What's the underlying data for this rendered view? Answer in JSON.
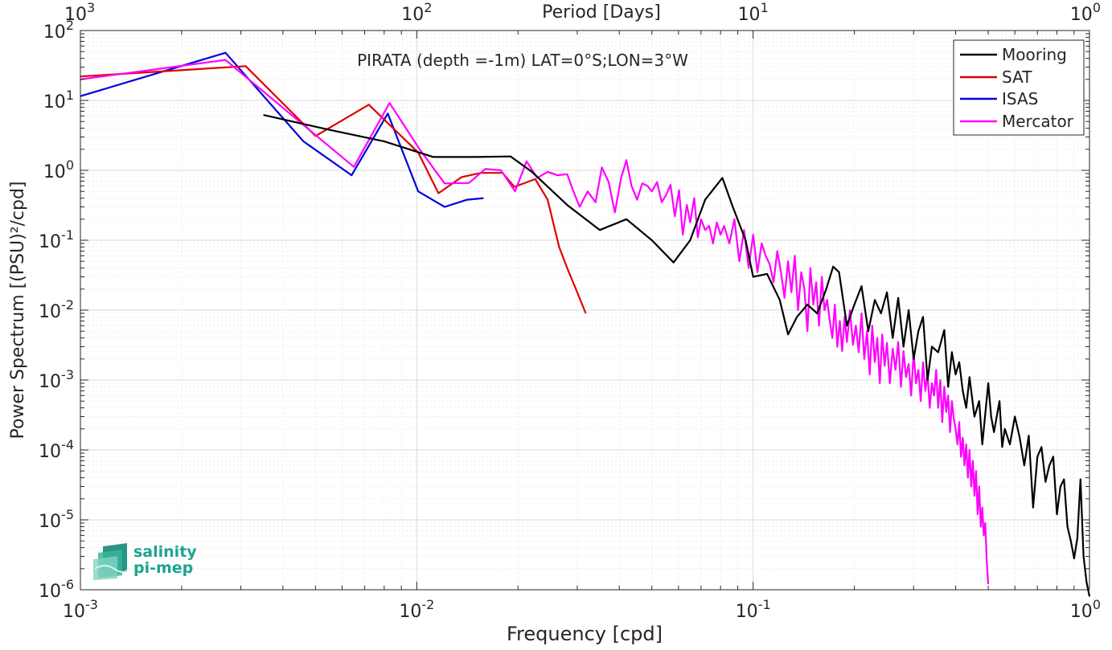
{
  "chart_data": {
    "type": "line",
    "title": "PIRATA (depth =-1m) LAT=0°S;LON=3°W",
    "xlabel": "Frequency [cpd]",
    "ylabel": "Power Spectrum [(PSU)²/cpd]",
    "top_xlabel": "Period [Days]",
    "x_scale": "log",
    "y_scale": "log",
    "xlim": [
      0.001,
      1
    ],
    "ylim": [
      1e-06,
      100
    ],
    "grid": true,
    "minor_grid": true,
    "legend_position": "top-right",
    "x_ticks": [
      {
        "mant": "10",
        "exp": "-3",
        "value": 0.001
      },
      {
        "mant": "10",
        "exp": "-2",
        "value": 0.01
      },
      {
        "mant": "10",
        "exp": "-1",
        "value": 0.1
      },
      {
        "mant": "10",
        "exp": "0",
        "value": 1
      }
    ],
    "top_ticks": [
      {
        "mant": "10",
        "exp": "3",
        "value": 0.001
      },
      {
        "mant": "10",
        "exp": "2",
        "value": 0.01
      },
      {
        "mant": "10",
        "exp": "1",
        "value": 0.1
      },
      {
        "mant": "10",
        "exp": "0",
        "value": 1
      }
    ],
    "y_ticks": [
      {
        "mant": "10",
        "exp": "2",
        "value": 100
      },
      {
        "mant": "10",
        "exp": "1",
        "value": 10
      },
      {
        "mant": "10",
        "exp": "0",
        "value": 1
      },
      {
        "mant": "10",
        "exp": "-1",
        "value": 0.1
      },
      {
        "mant": "10",
        "exp": "-2",
        "value": 0.01
      },
      {
        "mant": "10",
        "exp": "-3",
        "value": 0.001
      },
      {
        "mant": "10",
        "exp": "-4",
        "value": 0.0001
      },
      {
        "mant": "10",
        "exp": "-5",
        "value": 1e-05
      },
      {
        "mant": "10",
        "exp": "-6",
        "value": 1e-06
      }
    ],
    "series": [
      {
        "name": "Mooring",
        "color": "#000000",
        "points": [
          [
            0.0035,
            6.2
          ],
          [
            0.0055,
            3.8
          ],
          [
            0.008,
            2.6
          ],
          [
            0.0112,
            1.55
          ],
          [
            0.015,
            1.55
          ],
          [
            0.019,
            1.58
          ],
          [
            0.022,
            0.95
          ],
          [
            0.028,
            0.32
          ],
          [
            0.035,
            0.14
          ],
          [
            0.042,
            0.2
          ],
          [
            0.05,
            0.1
          ],
          [
            0.058,
            0.048
          ],
          [
            0.065,
            0.1
          ],
          [
            0.072,
            0.38
          ],
          [
            0.081,
            0.78
          ],
          [
            0.087,
            0.3
          ],
          [
            0.095,
            0.1
          ],
          [
            0.1,
            0.03
          ],
          [
            0.11,
            0.033
          ],
          [
            0.12,
            0.014
          ],
          [
            0.127,
            0.0045
          ],
          [
            0.135,
            0.008
          ],
          [
            0.145,
            0.012
          ],
          [
            0.155,
            0.009
          ],
          [
            0.165,
            0.02
          ],
          [
            0.173,
            0.042
          ],
          [
            0.18,
            0.035
          ],
          [
            0.19,
            0.006
          ],
          [
            0.2,
            0.012
          ],
          [
            0.21,
            0.022
          ],
          [
            0.22,
            0.005
          ],
          [
            0.23,
            0.014
          ],
          [
            0.24,
            0.009
          ],
          [
            0.25,
            0.018
          ],
          [
            0.26,
            0.004
          ],
          [
            0.27,
            0.015
          ],
          [
            0.28,
            0.003
          ],
          [
            0.29,
            0.01
          ],
          [
            0.3,
            0.002
          ],
          [
            0.31,
            0.005
          ],
          [
            0.32,
            0.008
          ],
          [
            0.33,
            0.001
          ],
          [
            0.34,
            0.003
          ],
          [
            0.355,
            0.0025
          ],
          [
            0.37,
            0.0052
          ],
          [
            0.38,
            0.0008
          ],
          [
            0.39,
            0.0025
          ],
          [
            0.4,
            0.0012
          ],
          [
            0.41,
            0.0018
          ],
          [
            0.42,
            0.0007
          ],
          [
            0.43,
            0.0004
          ],
          [
            0.44,
            0.0011
          ],
          [
            0.455,
            0.0003
          ],
          [
            0.47,
            0.0005
          ],
          [
            0.48,
            0.00012
          ],
          [
            0.5,
            0.0009
          ],
          [
            0.51,
            0.0003
          ],
          [
            0.52,
            0.00018
          ],
          [
            0.54,
            0.0005
          ],
          [
            0.55,
            0.00011
          ],
          [
            0.56,
            0.0002
          ],
          [
            0.58,
            0.00012
          ],
          [
            0.6,
            0.0003
          ],
          [
            0.62,
            0.00015
          ],
          [
            0.64,
            6e-05
          ],
          [
            0.66,
            0.00016
          ],
          [
            0.68,
            1.5e-05
          ],
          [
            0.7,
            8e-05
          ],
          [
            0.72,
            0.00011
          ],
          [
            0.74,
            3.5e-05
          ],
          [
            0.76,
            6e-05
          ],
          [
            0.78,
            8e-05
          ],
          [
            0.8,
            1.2e-05
          ],
          [
            0.82,
            3e-05
          ],
          [
            0.84,
            3.8e-05
          ],
          [
            0.86,
            8e-06
          ],
          [
            0.88,
            5e-06
          ],
          [
            0.9,
            2.8e-06
          ],
          [
            0.92,
            5.5e-06
          ],
          [
            0.94,
            3.8e-05
          ],
          [
            0.96,
            3e-06
          ],
          [
            0.98,
            1.3e-06
          ],
          [
            1.0,
            8e-07
          ]
        ]
      },
      {
        "name": "SAT",
        "color": "#e00000",
        "points": [
          [
            0.001,
            22
          ],
          [
            0.0031,
            31
          ],
          [
            0.005,
            3.1
          ],
          [
            0.0072,
            8.7
          ],
          [
            0.0101,
            1.8
          ],
          [
            0.0116,
            0.47
          ],
          [
            0.0136,
            0.8
          ],
          [
            0.0155,
            0.92
          ],
          [
            0.018,
            0.92
          ],
          [
            0.0195,
            0.58
          ],
          [
            0.0225,
            0.75
          ],
          [
            0.0245,
            0.38
          ],
          [
            0.0265,
            0.08
          ],
          [
            0.028,
            0.04
          ],
          [
            0.03,
            0.018
          ],
          [
            0.0318,
            0.009
          ]
        ]
      },
      {
        "name": "ISAS",
        "color": "#0000e0",
        "points": [
          [
            0.001,
            11.5
          ],
          [
            0.0027,
            48
          ],
          [
            0.0046,
            2.6
          ],
          [
            0.0064,
            0.85
          ],
          [
            0.0082,
            6.5
          ],
          [
            0.0101,
            0.5
          ],
          [
            0.0121,
            0.3
          ],
          [
            0.0141,
            0.38
          ],
          [
            0.0158,
            0.4
          ]
        ]
      },
      {
        "name": "Mercator",
        "color": "#ff00ff",
        "points": [
          [
            0.001,
            20
          ],
          [
            0.0027,
            38
          ],
          [
            0.0047,
            4.1
          ],
          [
            0.0065,
            1.12
          ],
          [
            0.0083,
            9.2
          ],
          [
            0.0102,
            2.0
          ],
          [
            0.0121,
            0.65
          ],
          [
            0.0143,
            0.66
          ],
          [
            0.016,
            1.05
          ],
          [
            0.0178,
            1.0
          ],
          [
            0.0196,
            0.5
          ],
          [
            0.0212,
            1.35
          ],
          [
            0.0228,
            0.78
          ],
          [
            0.0245,
            0.95
          ],
          [
            0.0262,
            0.85
          ],
          [
            0.028,
            0.88
          ],
          [
            0.029,
            0.55
          ],
          [
            0.0305,
            0.3
          ],
          [
            0.0322,
            0.5
          ],
          [
            0.034,
            0.35
          ],
          [
            0.0355,
            1.1
          ],
          [
            0.0372,
            0.68
          ],
          [
            0.0388,
            0.25
          ],
          [
            0.0405,
            0.78
          ],
          [
            0.042,
            1.4
          ],
          [
            0.0435,
            0.6
          ],
          [
            0.0452,
            0.38
          ],
          [
            0.0468,
            0.65
          ],
          [
            0.0485,
            0.6
          ],
          [
            0.05,
            0.5
          ],
          [
            0.0518,
            0.68
          ],
          [
            0.0535,
            0.35
          ],
          [
            0.0552,
            0.45
          ],
          [
            0.0568,
            0.62
          ],
          [
            0.0585,
            0.22
          ],
          [
            0.0602,
            0.52
          ],
          [
            0.0618,
            0.12
          ],
          [
            0.0635,
            0.32
          ],
          [
            0.065,
            0.18
          ],
          [
            0.0668,
            0.4
          ],
          [
            0.0685,
            0.11
          ],
          [
            0.07,
            0.2
          ],
          [
            0.072,
            0.14
          ],
          [
            0.074,
            0.16
          ],
          [
            0.076,
            0.09
          ],
          [
            0.078,
            0.18
          ],
          [
            0.08,
            0.12
          ],
          [
            0.082,
            0.16
          ],
          [
            0.085,
            0.09
          ],
          [
            0.088,
            0.2
          ],
          [
            0.091,
            0.05
          ],
          [
            0.094,
            0.14
          ],
          [
            0.097,
            0.04
          ],
          [
            0.1,
            0.12
          ],
          [
            0.103,
            0.035
          ],
          [
            0.106,
            0.09
          ],
          [
            0.109,
            0.06
          ],
          [
            0.112,
            0.045
          ],
          [
            0.115,
            0.025
          ],
          [
            0.118,
            0.07
          ],
          [
            0.121,
            0.035
          ],
          [
            0.124,
            0.015
          ],
          [
            0.127,
            0.05
          ],
          [
            0.13,
            0.018
          ],
          [
            0.133,
            0.06
          ],
          [
            0.136,
            0.01
          ],
          [
            0.139,
            0.035
          ],
          [
            0.142,
            0.02
          ],
          [
            0.145,
            0.005
          ],
          [
            0.148,
            0.04
          ],
          [
            0.151,
            0.012
          ],
          [
            0.154,
            0.025
          ],
          [
            0.157,
            0.006
          ],
          [
            0.16,
            0.03
          ],
          [
            0.163,
            0.01
          ],
          [
            0.166,
            0.014
          ],
          [
            0.169,
            0.007
          ],
          [
            0.172,
            0.004
          ],
          [
            0.175,
            0.012
          ],
          [
            0.178,
            0.003
          ],
          [
            0.181,
            0.007
          ],
          [
            0.184,
            0.0026
          ],
          [
            0.187,
            0.008
          ],
          [
            0.19,
            0.0035
          ],
          [
            0.194,
            0.01
          ],
          [
            0.198,
            0.0032
          ],
          [
            0.202,
            0.006
          ],
          [
            0.206,
            0.0025
          ],
          [
            0.21,
            0.009
          ],
          [
            0.214,
            0.002
          ],
          [
            0.218,
            0.005
          ],
          [
            0.222,
            0.0012
          ],
          [
            0.226,
            0.006
          ],
          [
            0.23,
            0.0018
          ],
          [
            0.234,
            0.004
          ],
          [
            0.238,
            0.0009
          ],
          [
            0.242,
            0.0045
          ],
          [
            0.246,
            0.0016
          ],
          [
            0.25,
            0.0034
          ],
          [
            0.255,
            0.0009
          ],
          [
            0.26,
            0.0028
          ],
          [
            0.265,
            0.0014
          ],
          [
            0.27,
            0.0035
          ],
          [
            0.275,
            0.0008
          ],
          [
            0.28,
            0.0026
          ],
          [
            0.285,
            0.0011
          ],
          [
            0.29,
            0.0017
          ],
          [
            0.295,
            0.0006
          ],
          [
            0.3,
            0.0025
          ],
          [
            0.305,
            0.0009
          ],
          [
            0.31,
            0.0014
          ],
          [
            0.315,
            0.0005
          ],
          [
            0.32,
            0.0018
          ],
          [
            0.325,
            0.0007
          ],
          [
            0.33,
            0.0012
          ],
          [
            0.335,
            0.0004
          ],
          [
            0.34,
            0.0009
          ],
          [
            0.345,
            0.0006
          ],
          [
            0.35,
            0.0014
          ],
          [
            0.355,
            0.0004
          ],
          [
            0.36,
            0.001
          ],
          [
            0.365,
            0.00025
          ],
          [
            0.37,
            0.0008
          ],
          [
            0.375,
            0.00035
          ],
          [
            0.38,
            0.0006
          ],
          [
            0.385,
            0.00018
          ],
          [
            0.39,
            0.0005
          ],
          [
            0.395,
            0.00028
          ],
          [
            0.4,
            0.0002
          ],
          [
            0.405,
            0.00012
          ],
          [
            0.41,
            0.00025
          ],
          [
            0.415,
            8e-05
          ],
          [
            0.42,
            0.00015
          ],
          [
            0.425,
            6e-05
          ],
          [
            0.43,
            0.00012
          ],
          [
            0.435,
            4e-05
          ],
          [
            0.44,
            0.0001
          ],
          [
            0.445,
            3e-05
          ],
          [
            0.45,
            7e-05
          ],
          [
            0.455,
            2.2e-05
          ],
          [
            0.46,
            5e-05
          ],
          [
            0.465,
            1.2e-05
          ],
          [
            0.47,
            3e-05
          ],
          [
            0.475,
            8e-06
          ],
          [
            0.48,
            1.5e-05
          ],
          [
            0.485,
            6e-06
          ],
          [
            0.49,
            9e-06
          ],
          [
            0.495,
            2.5e-06
          ],
          [
            0.5,
            1.2e-06
          ]
        ]
      }
    ]
  },
  "logo": {
    "line1": "salinity",
    "line2": "pi-mep",
    "color": "#1aa58f"
  }
}
